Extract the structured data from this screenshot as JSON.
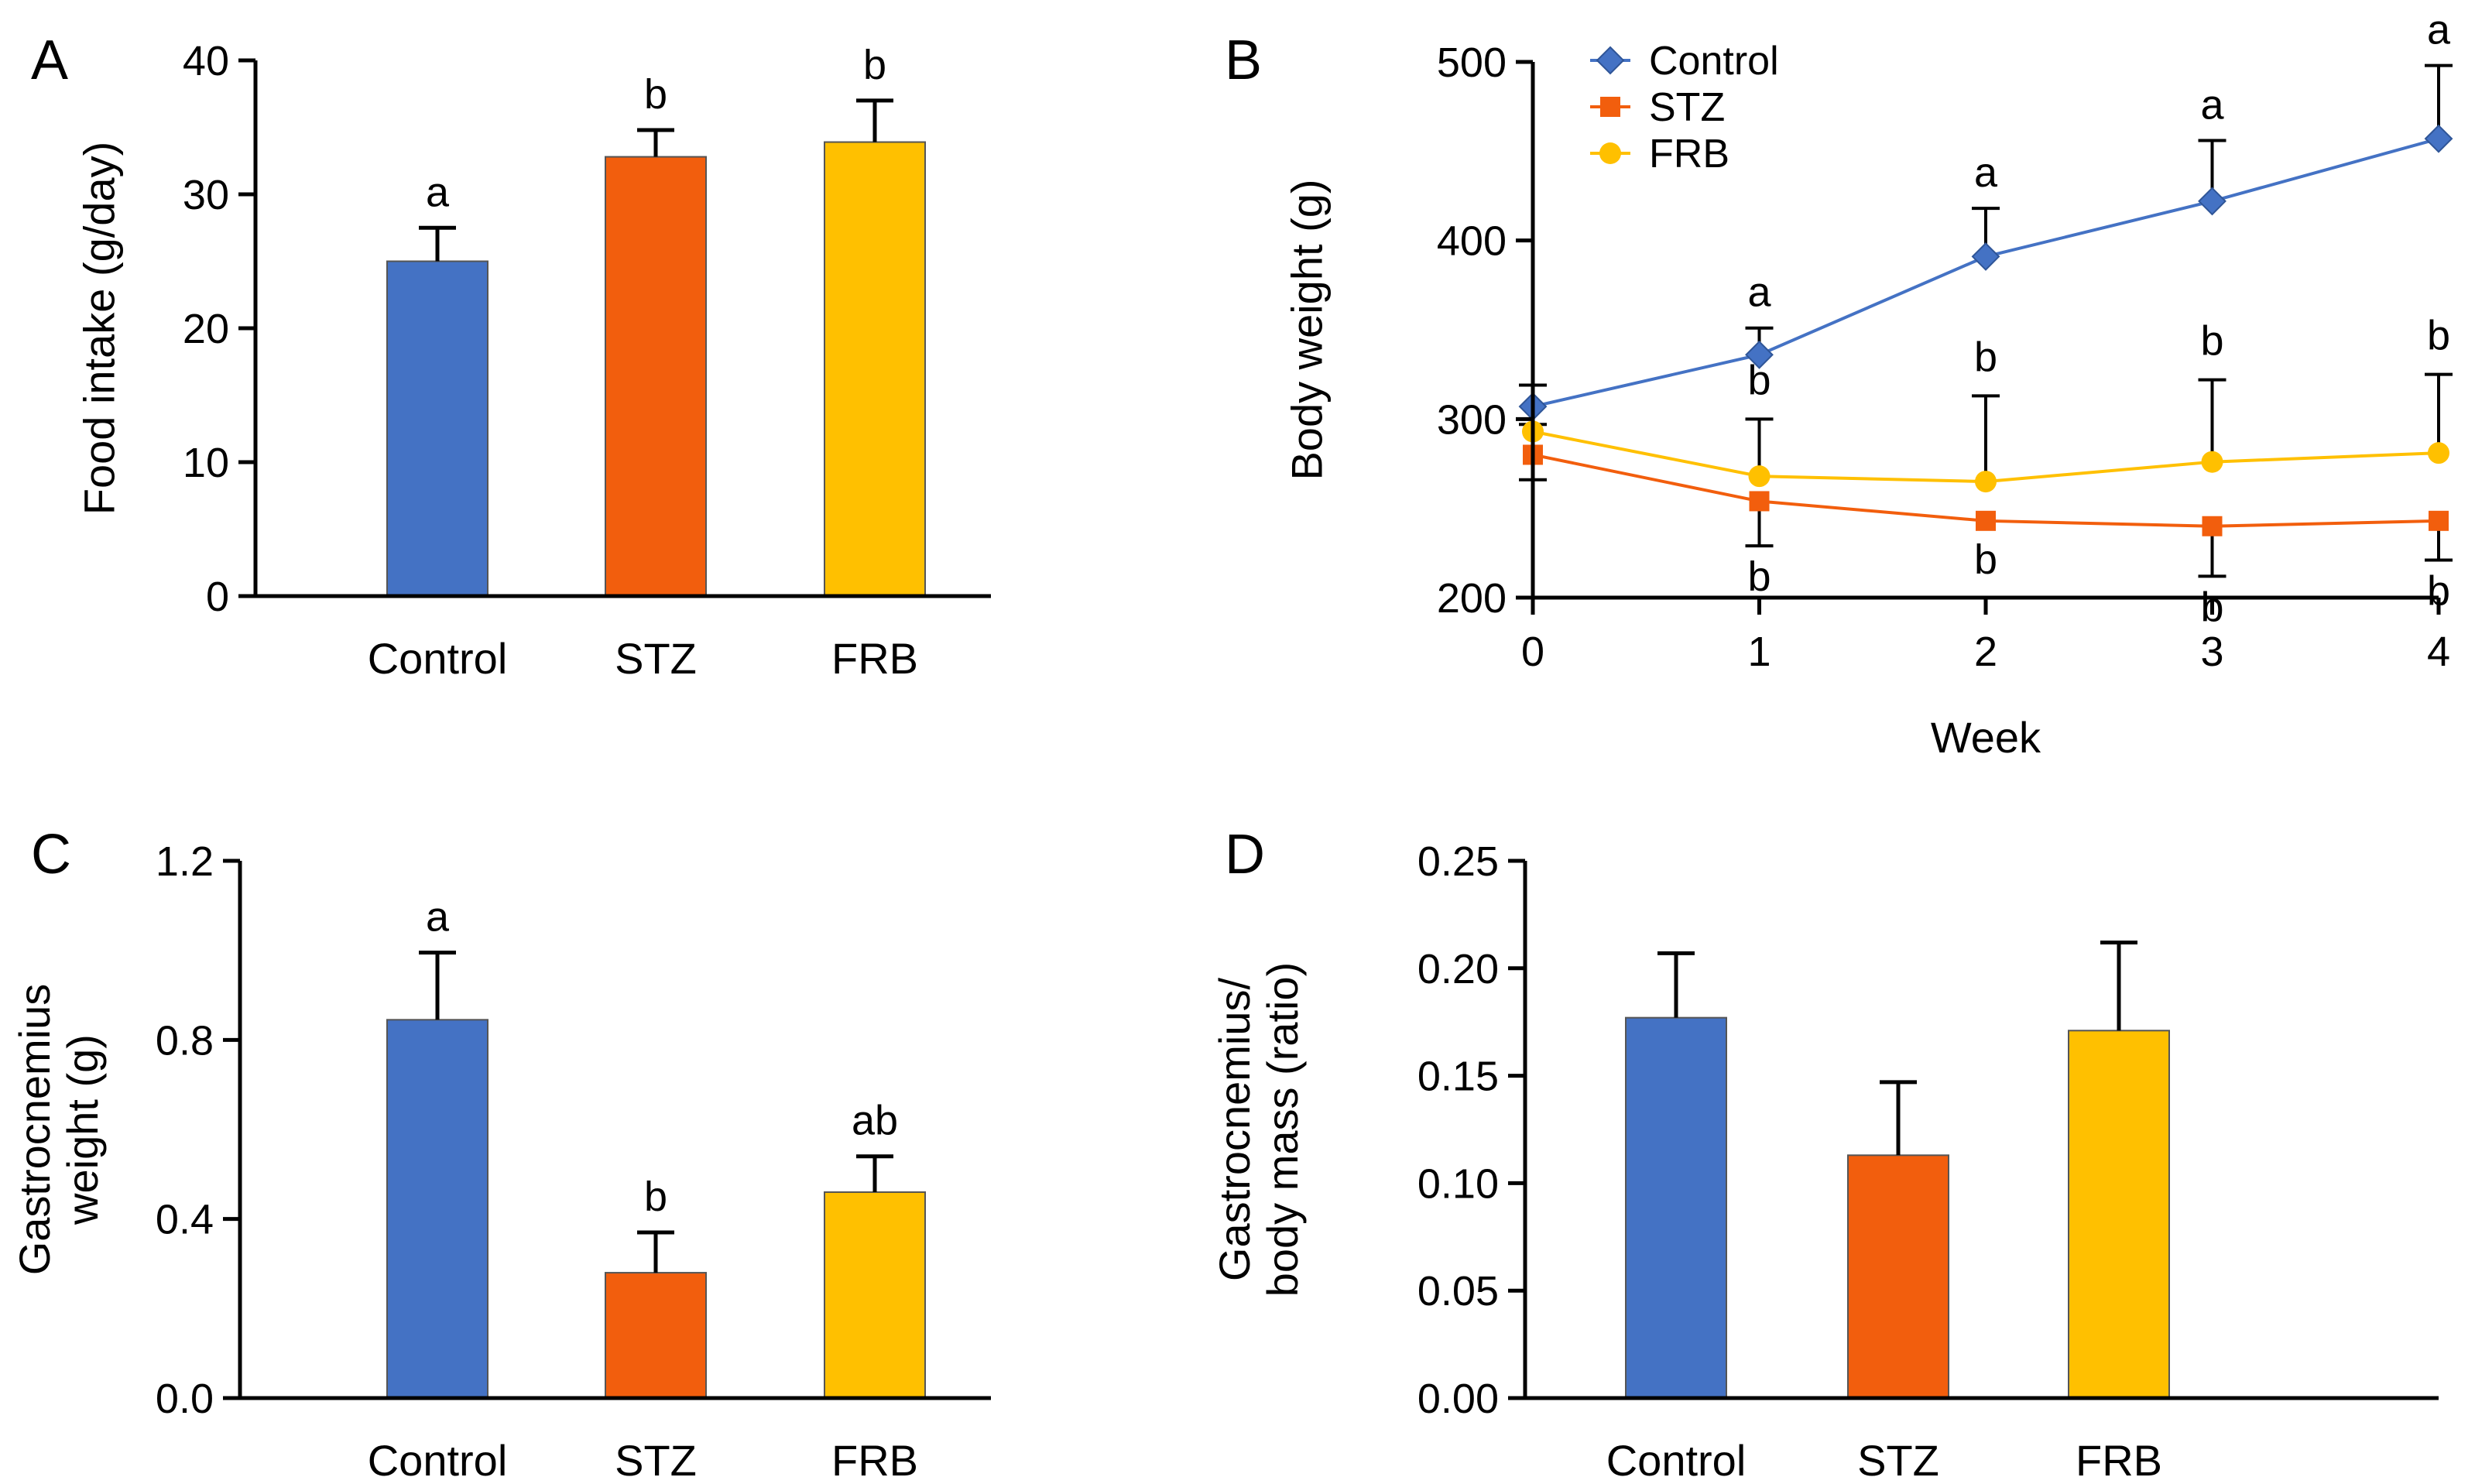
{
  "figure": {
    "colors": {
      "control": "#4472C4",
      "stz": "#F25E0D",
      "frb": "#FFC000",
      "axis": "#000000",
      "bar_edge": "#555555"
    }
  },
  "chart_data": [
    {
      "id": "A",
      "panel_label": "A",
      "type": "bar",
      "title": "",
      "xlabel": "",
      "ylabel": "Food intake (g/day)",
      "ylim": [
        0,
        40
      ],
      "yticks": [
        0,
        10,
        20,
        30,
        40
      ],
      "ytick_labels": [
        "0",
        "10",
        "20",
        "30",
        "40"
      ],
      "categories": [
        "Control",
        "STZ",
        "FRB"
      ],
      "values": [
        25,
        32.8,
        33.9
      ],
      "errors": [
        2.5,
        2.0,
        3.1
      ],
      "significance": [
        "a",
        "b",
        "b"
      ],
      "colors": [
        "#4472C4",
        "#F25E0D",
        "#FFC000"
      ]
    },
    {
      "id": "B",
      "panel_label": "B",
      "type": "line",
      "title": "",
      "xlabel": "Week",
      "ylabel": "Body weight (g)",
      "x": [
        0,
        1,
        2,
        3,
        4
      ],
      "xticks": [
        0,
        1,
        2,
        3,
        4
      ],
      "xtick_labels": [
        "0",
        "1",
        "2",
        "3",
        "4"
      ],
      "xlim": [
        0,
        4
      ],
      "ylim": [
        200,
        500
      ],
      "yticks": [
        200,
        300,
        400,
        500
      ],
      "ytick_labels": [
        "200",
        "300",
        "400",
        "500"
      ],
      "legend_position": "top-left",
      "series": [
        {
          "name": "Control",
          "marker": "diamond",
          "color": "#4472C4",
          "values": [
            307,
            336,
            391,
            422,
            457
          ],
          "errors": [
            12,
            15,
            27,
            34,
            41
          ],
          "error_side": "up",
          "significance": [
            "",
            "a",
            "a",
            "a",
            "a"
          ]
        },
        {
          "name": "STZ",
          "marker": "square",
          "color": "#F25E0D",
          "values": [
            280,
            254,
            243,
            240,
            243
          ],
          "errors": [
            14,
            25,
            0,
            28,
            22
          ],
          "error_side": "down",
          "significance": [
            "",
            "b",
            "b",
            "b",
            "b"
          ]
        },
        {
          "name": "FRB",
          "marker": "circle",
          "color": "#FFC000",
          "values": [
            293,
            268,
            265,
            276,
            281
          ],
          "errors": [
            4,
            32,
            48,
            46,
            44
          ],
          "error_side": "up",
          "significance": [
            "",
            "b",
            "b",
            "b",
            "b"
          ]
        }
      ]
    },
    {
      "id": "C",
      "panel_label": "C",
      "type": "bar",
      "title": "",
      "xlabel": "",
      "ylabel_lines": [
        "Gastrocnemius",
        "weight (g)"
      ],
      "ylim": [
        0,
        1.2
      ],
      "yticks": [
        0,
        0.4,
        0.8,
        1.2
      ],
      "ytick_labels": [
        "0.0",
        "0.4",
        "0.8",
        "1.2"
      ],
      "categories": [
        "Control",
        "STZ",
        "FRB"
      ],
      "values": [
        0.845,
        0.28,
        0.46
      ],
      "errors": [
        0.15,
        0.09,
        0.08
      ],
      "significance": [
        "a",
        "b",
        "ab"
      ],
      "colors": [
        "#4472C4",
        "#F25E0D",
        "#FFC000"
      ]
    },
    {
      "id": "D",
      "panel_label": "D",
      "type": "bar",
      "title": "",
      "xlabel": "",
      "ylabel_lines": [
        "Gastrocnemius/",
        "body mass (ratio)"
      ],
      "ylim": [
        0,
        0.25
      ],
      "yticks": [
        0,
        0.05,
        0.1,
        0.15,
        0.2,
        0.25
      ],
      "ytick_labels": [
        "0.00",
        "0.05",
        "0.10",
        "0.15",
        "0.20",
        "0.25"
      ],
      "categories": [
        "Control",
        "STZ",
        "FRB"
      ],
      "values": [
        0.177,
        0.113,
        0.171
      ],
      "errors": [
        0.03,
        0.034,
        0.041
      ],
      "significance": [
        "",
        "",
        ""
      ],
      "colors": [
        "#4472C4",
        "#F25E0D",
        "#FFC000"
      ]
    }
  ]
}
